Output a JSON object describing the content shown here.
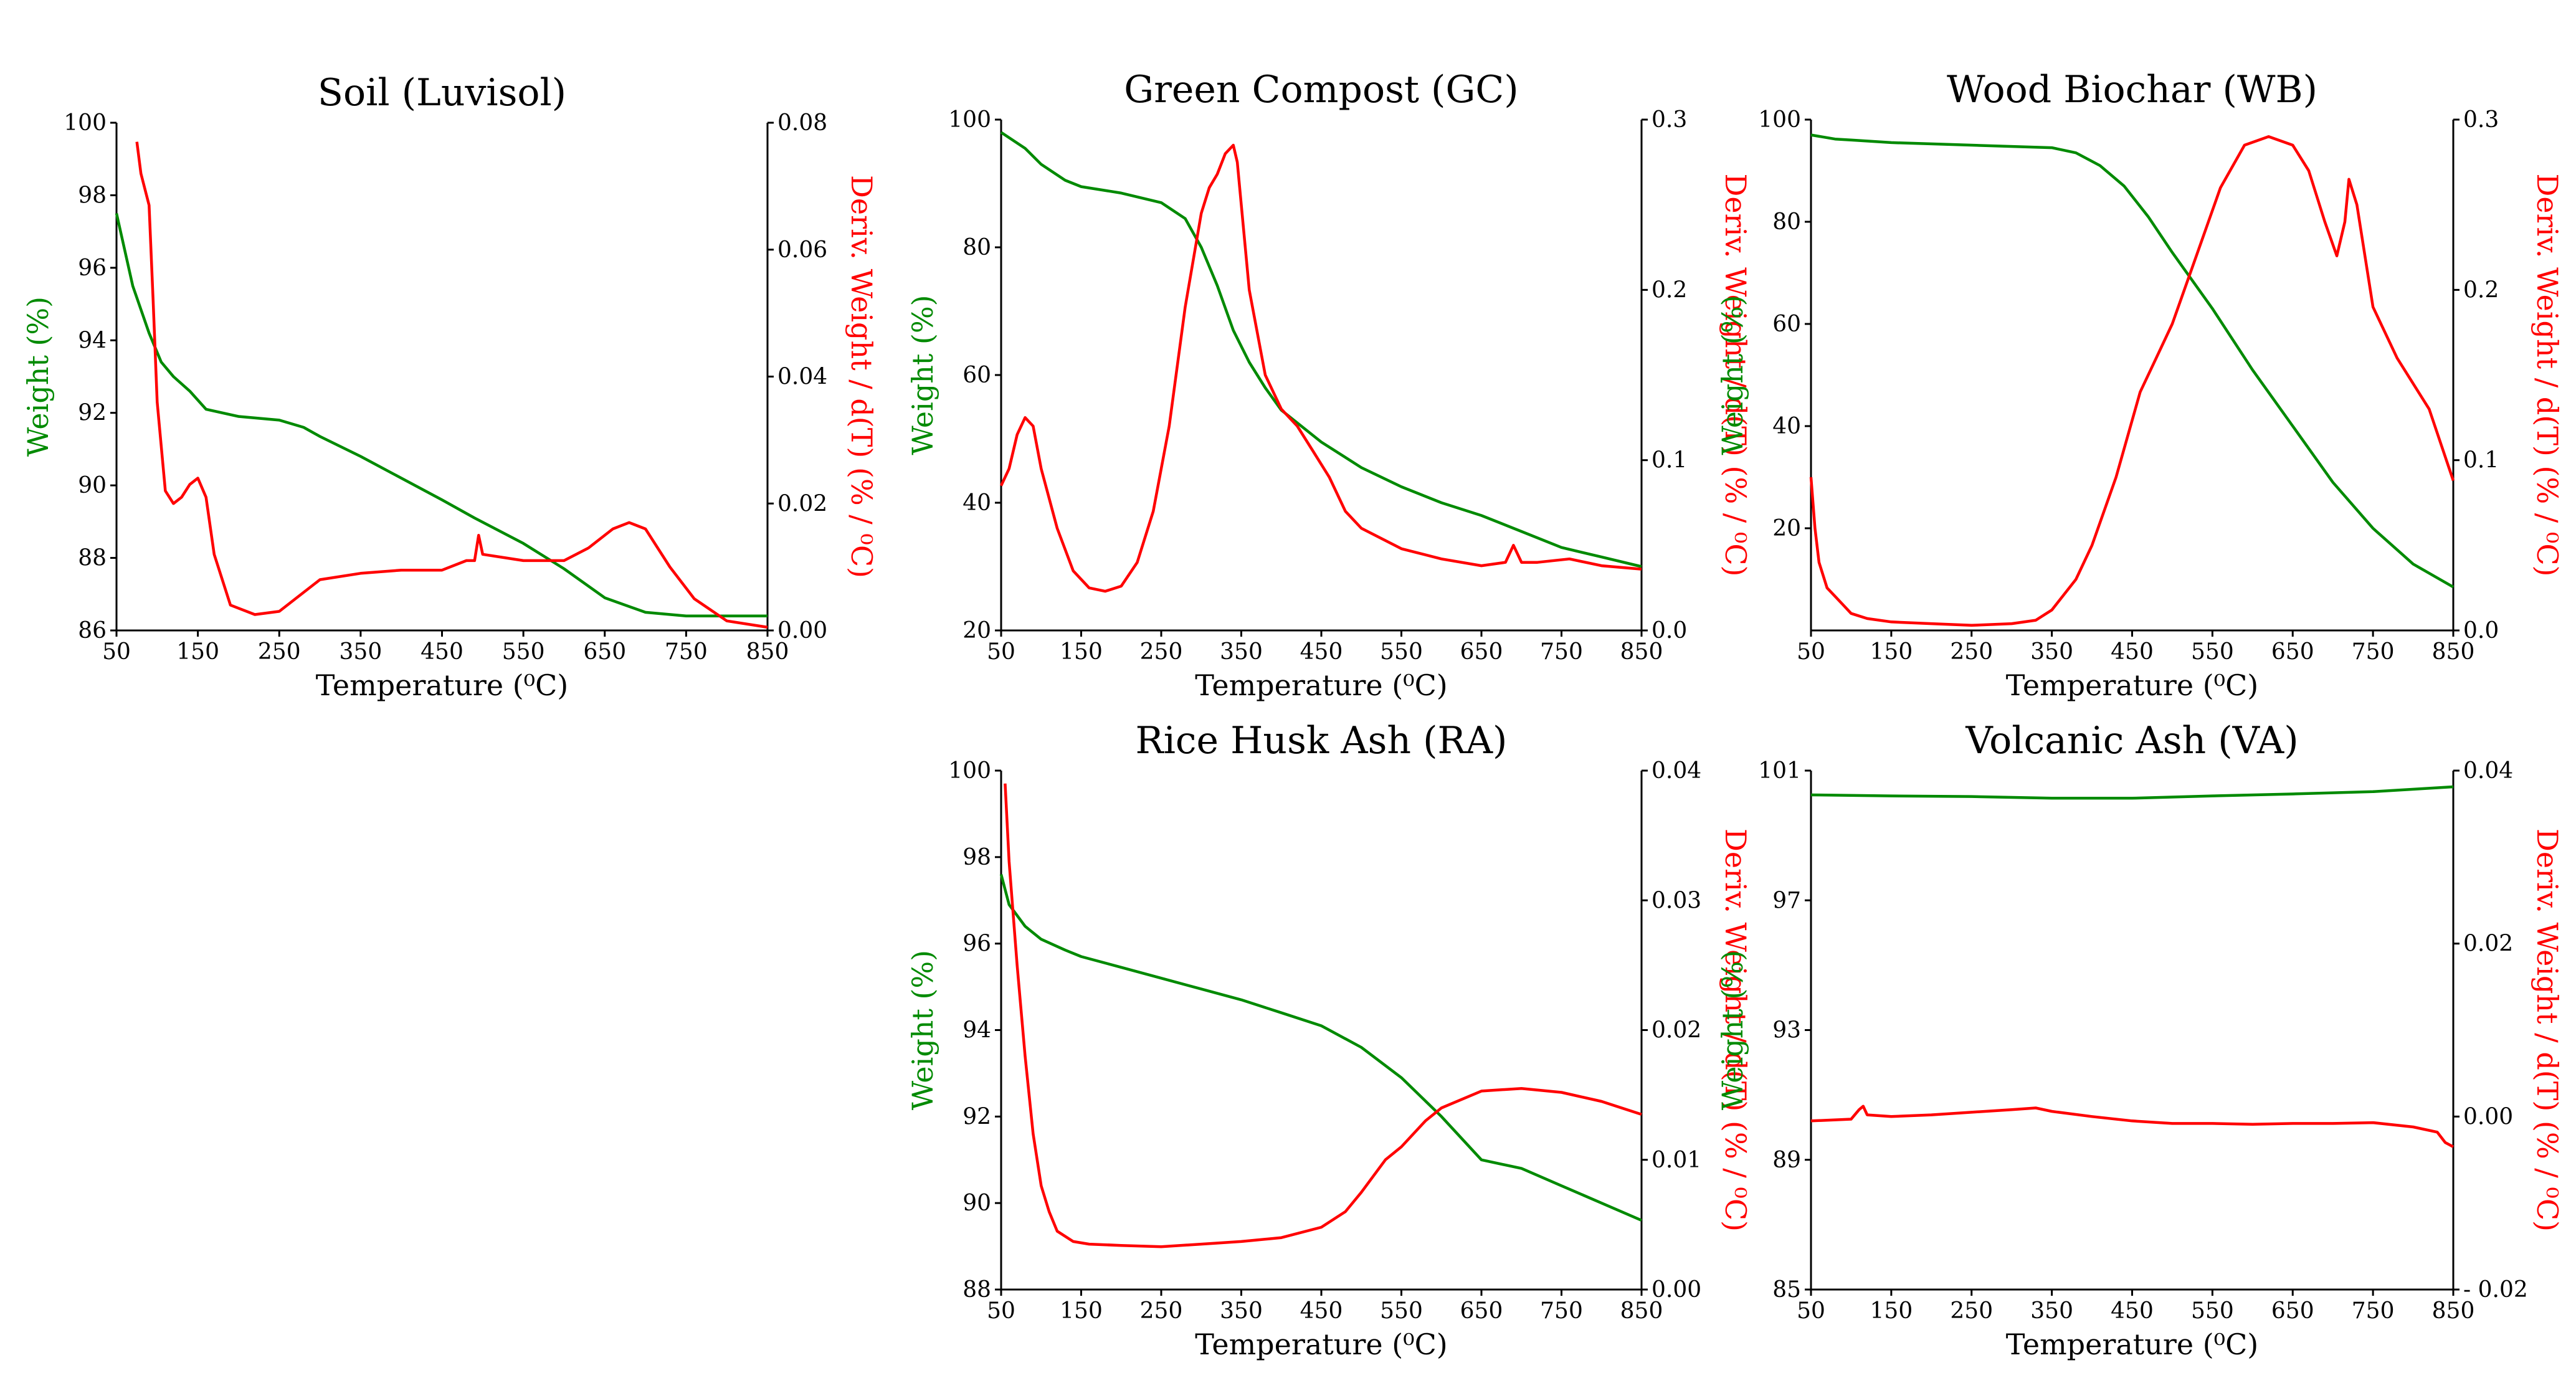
{
  "colors": {
    "weight": "#008a00",
    "deriv": "#ff0000",
    "axis": "#000000"
  },
  "chart_data": [
    {
      "id": "soil",
      "type": "line",
      "title": "Soil (Luvisol)",
      "xlabel": "Temperature (⁰C)",
      "ylabel_left": "Weight (%)",
      "ylabel_right": "Deriv. Weight / d(T) (% / ⁰C)",
      "xlim": [
        50,
        850
      ],
      "ylim_left": [
        86,
        100
      ],
      "ylim_right": [
        0,
        0.08
      ],
      "xticks": [
        "50",
        "150",
        "250",
        "350",
        "450",
        "550",
        "650",
        "750",
        "850"
      ],
      "yticks_left": [
        "86",
        "88",
        "90",
        "92",
        "94",
        "96",
        "98",
        "100"
      ],
      "yticks_right": [
        "0.00",
        "0.02",
        "0.04",
        "0.06",
        "0.08"
      ],
      "series": [
        {
          "name": "Weight",
          "axis": "left",
          "x": [
            50,
            70,
            90,
            105,
            120,
            140,
            160,
            200,
            250,
            280,
            300,
            350,
            400,
            450,
            490,
            550,
            600,
            650,
            700,
            750,
            800,
            850
          ],
          "y": [
            97.5,
            95.5,
            94.2,
            93.4,
            93.0,
            92.6,
            92.1,
            91.9,
            91.8,
            91.6,
            91.35,
            90.8,
            90.2,
            89.6,
            89.1,
            88.4,
            87.7,
            86.9,
            86.5,
            86.4,
            86.4,
            86.4
          ]
        },
        {
          "name": "Deriv. Weight",
          "axis": "right",
          "x": [
            75,
            80,
            90,
            95,
            100,
            110,
            120,
            130,
            140,
            150,
            160,
            170,
            190,
            220,
            250,
            280,
            300,
            350,
            400,
            450,
            480,
            490,
            495,
            500,
            550,
            600,
            630,
            660,
            680,
            700,
            730,
            760,
            800,
            850
          ],
          "y": [
            0.077,
            0.072,
            0.067,
            0.052,
            0.036,
            0.022,
            0.02,
            0.021,
            0.023,
            0.024,
            0.021,
            0.012,
            0.004,
            0.0025,
            0.003,
            0.006,
            0.008,
            0.009,
            0.0095,
            0.0095,
            0.011,
            0.011,
            0.015,
            0.012,
            0.011,
            0.011,
            0.013,
            0.016,
            0.017,
            0.016,
            0.01,
            0.005,
            0.0015,
            0.0005
          ]
        }
      ]
    },
    {
      "id": "gc",
      "type": "line",
      "title": "Green Compost (GC)",
      "xlabel": "Temperature (⁰C)",
      "ylabel_left": "Weight (%)",
      "ylabel_right": "Deriv. Weight / d(T) (% / ⁰C)",
      "xlim": [
        50,
        850
      ],
      "ylim_left": [
        20,
        100
      ],
      "ylim_right": [
        0,
        0.3
      ],
      "xticks": [
        "50",
        "150",
        "250",
        "350",
        "450",
        "550",
        "650",
        "750",
        "850"
      ],
      "yticks_left": [
        "20",
        "40",
        "60",
        "80",
        "100"
      ],
      "yticks_right": [
        "0.0",
        "0.1",
        "0.2",
        "0.3"
      ],
      "series": [
        {
          "name": "Weight",
          "axis": "left",
          "x": [
            50,
            80,
            100,
            130,
            150,
            200,
            250,
            280,
            300,
            320,
            340,
            360,
            380,
            400,
            450,
            500,
            550,
            600,
            650,
            700,
            750,
            800,
            850
          ],
          "y": [
            98,
            95.5,
            93,
            90.5,
            89.5,
            88.5,
            87,
            84.5,
            80,
            74,
            67,
            62,
            58,
            54.5,
            49.5,
            45.5,
            42.5,
            40,
            38,
            35.5,
            33,
            31.5,
            30
          ]
        },
        {
          "name": "Deriv. Weight",
          "axis": "right",
          "x": [
            50,
            60,
            70,
            80,
            90,
            100,
            120,
            140,
            160,
            180,
            200,
            220,
            240,
            260,
            280,
            300,
            310,
            320,
            330,
            340,
            345,
            350,
            360,
            380,
            400,
            420,
            440,
            460,
            480,
            500,
            550,
            600,
            650,
            680,
            690,
            700,
            720,
            760,
            800,
            850
          ],
          "y": [
            0.085,
            0.095,
            0.115,
            0.125,
            0.12,
            0.095,
            0.06,
            0.035,
            0.025,
            0.023,
            0.026,
            0.04,
            0.07,
            0.12,
            0.19,
            0.245,
            0.26,
            0.268,
            0.28,
            0.285,
            0.275,
            0.25,
            0.2,
            0.15,
            0.13,
            0.12,
            0.105,
            0.09,
            0.07,
            0.06,
            0.048,
            0.042,
            0.038,
            0.04,
            0.05,
            0.04,
            0.04,
            0.042,
            0.038,
            0.036
          ]
        }
      ]
    },
    {
      "id": "wb",
      "type": "line",
      "title": "Wood Biochar (WB)",
      "xlabel": "Temperature (⁰C)",
      "ylabel_left": "Weight (%)",
      "ylabel_right": "Deriv. Weight / d(T) (% / ⁰C)",
      "xlim": [
        50,
        850
      ],
      "ylim_left": [
        0,
        100
      ],
      "ylim_right": [
        0,
        0.3
      ],
      "xticks": [
        "50",
        "150",
        "250",
        "350",
        "450",
        "550",
        "650",
        "750",
        "850"
      ],
      "yticks_left": [
        "20",
        "40",
        "60",
        "80",
        "100"
      ],
      "yticks_right": [
        "0.0",
        "0.1",
        "0.2",
        "0.3"
      ],
      "series": [
        {
          "name": "Weight",
          "axis": "left",
          "x": [
            50,
            80,
            100,
            150,
            250,
            350,
            380,
            410,
            440,
            470,
            500,
            550,
            600,
            650,
            700,
            750,
            800,
            850
          ],
          "y": [
            97,
            96.2,
            96,
            95.5,
            95,
            94.5,
            93.5,
            91,
            87,
            81,
            74,
            63,
            51,
            40,
            29,
            20,
            13,
            8.5
          ]
        },
        {
          "name": "Deriv. Weight",
          "axis": "right",
          "x": [
            50,
            55,
            60,
            70,
            80,
            90,
            100,
            120,
            150,
            200,
            250,
            300,
            330,
            350,
            380,
            400,
            430,
            460,
            480,
            500,
            530,
            560,
            590,
            620,
            650,
            670,
            690,
            705,
            715,
            720,
            730,
            750,
            780,
            820,
            850
          ],
          "y": [
            0.09,
            0.06,
            0.04,
            0.025,
            0.02,
            0.015,
            0.01,
            0.007,
            0.005,
            0.004,
            0.003,
            0.004,
            0.006,
            0.012,
            0.03,
            0.05,
            0.09,
            0.14,
            0.16,
            0.18,
            0.22,
            0.26,
            0.285,
            0.29,
            0.285,
            0.27,
            0.24,
            0.22,
            0.24,
            0.265,
            0.25,
            0.19,
            0.16,
            0.13,
            0.088
          ]
        }
      ]
    },
    {
      "id": "ra",
      "type": "line",
      "title": "Rice Husk Ash (RA)",
      "xlabel": "Temperature (⁰C)",
      "ylabel_left": "Weight (%)",
      "ylabel_right": "Deriv. Weight / d(T) (% / ⁰C)",
      "xlim": [
        50,
        850
      ],
      "ylim_left": [
        88,
        100
      ],
      "ylim_right": [
        0,
        0.04
      ],
      "xticks": [
        "50",
        "150",
        "250",
        "350",
        "450",
        "550",
        "650",
        "750",
        "850"
      ],
      "yticks_left": [
        "88",
        "90",
        "92",
        "94",
        "96",
        "98",
        "100"
      ],
      "yticks_right": [
        "0.00",
        "0.01",
        "0.02",
        "0.03",
        "0.04"
      ],
      "series": [
        {
          "name": "Weight",
          "axis": "left",
          "x": [
            50,
            60,
            80,
            100,
            130,
            150,
            200,
            250,
            300,
            350,
            400,
            450,
            500,
            550,
            600,
            650,
            700,
            750,
            800,
            850
          ],
          "y": [
            97.6,
            96.9,
            96.4,
            96.1,
            95.85,
            95.7,
            95.45,
            95.2,
            94.95,
            94.7,
            94.4,
            94.1,
            93.6,
            92.9,
            92.0,
            91.0,
            90.8,
            90.4,
            90.0,
            89.6
          ]
        },
        {
          "name": "Deriv. Weight",
          "axis": "right",
          "x": [
            55,
            60,
            70,
            80,
            90,
            100,
            110,
            120,
            140,
            160,
            200,
            250,
            300,
            350,
            400,
            450,
            480,
            500,
            530,
            550,
            580,
            600,
            650,
            700,
            750,
            800,
            850
          ],
          "y": [
            0.039,
            0.033,
            0.025,
            0.018,
            0.012,
            0.008,
            0.006,
            0.0045,
            0.0037,
            0.0035,
            0.0034,
            0.0033,
            0.0035,
            0.0037,
            0.004,
            0.0048,
            0.006,
            0.0075,
            0.01,
            0.011,
            0.013,
            0.014,
            0.0153,
            0.0155,
            0.0152,
            0.0145,
            0.0135
          ]
        }
      ]
    },
    {
      "id": "va",
      "type": "line",
      "title": "Volcanic Ash (VA)",
      "xlabel": "Temperature (⁰C)",
      "ylabel_left": "Weight (%)",
      "ylabel_right": "Deriv. Weight / d(T) (% / ⁰C)",
      "xlim": [
        50,
        850
      ],
      "ylim_left": [
        85,
        101
      ],
      "ylim_right": [
        -0.02,
        0.04
      ],
      "xticks": [
        "50",
        "150",
        "250",
        "350",
        "450",
        "550",
        "650",
        "750",
        "850"
      ],
      "yticks_left": [
        "85",
        "89",
        "93",
        "97",
        "101"
      ],
      "yticks_right": [
        "- 0.02",
        "0.00",
        "0.02",
        "0.04"
      ],
      "series": [
        {
          "name": "Weight",
          "axis": "left",
          "x": [
            50,
            150,
            250,
            350,
            450,
            550,
            650,
            750,
            850
          ],
          "y": [
            100.25,
            100.22,
            100.2,
            100.15,
            100.15,
            100.22,
            100.28,
            100.35,
            100.5
          ]
        },
        {
          "name": "Deriv. Weight",
          "axis": "right",
          "x": [
            50,
            100,
            110,
            115,
            120,
            150,
            200,
            250,
            300,
            330,
            350,
            400,
            450,
            500,
            550,
            600,
            650,
            700,
            750,
            800,
            830,
            840,
            850
          ],
          "y": [
            -0.0005,
            -0.0003,
            0.0008,
            0.0012,
            0.0002,
            0.0,
            0.0002,
            0.0005,
            0.0008,
            0.001,
            0.0006,
            0.0,
            -0.0005,
            -0.0008,
            -0.0008,
            -0.0009,
            -0.0008,
            -0.0008,
            -0.0007,
            -0.0012,
            -0.0018,
            -0.003,
            -0.0035
          ]
        }
      ]
    }
  ]
}
